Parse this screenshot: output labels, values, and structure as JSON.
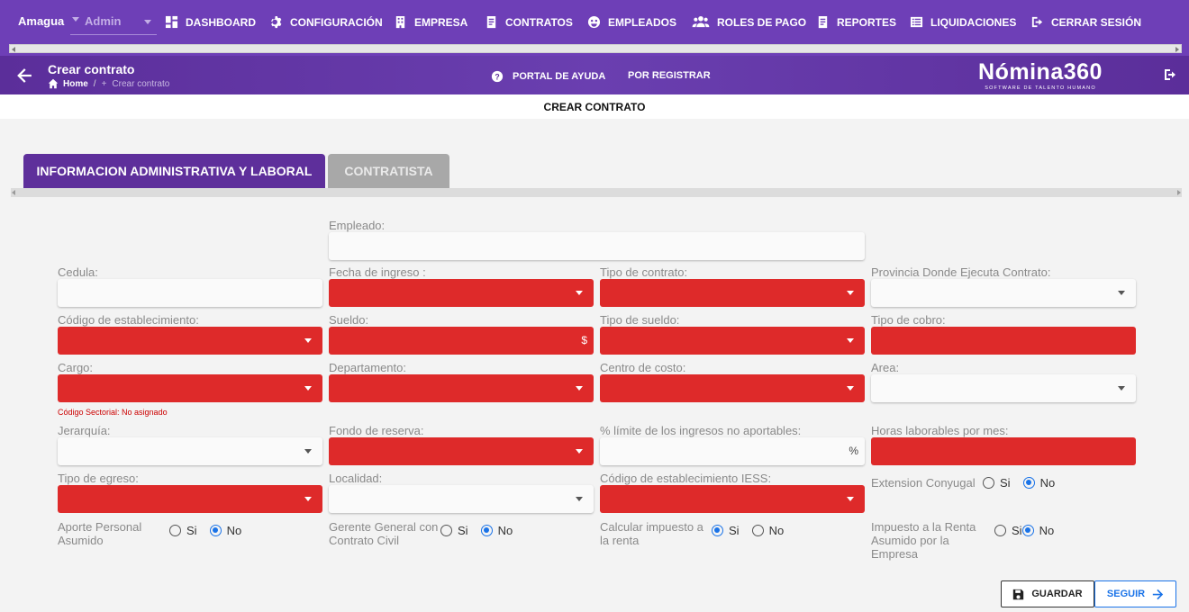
{
  "topnav": {
    "company": "Amagua",
    "role": "Admin",
    "items": [
      {
        "label": "DASHBOARD",
        "icon": "dashboard-icon"
      },
      {
        "label": "CONFIGURACIÓN",
        "icon": "gear-icon"
      },
      {
        "label": "EMPRESA",
        "icon": "building-icon"
      },
      {
        "label": "CONTRATOS",
        "icon": "document-icon"
      },
      {
        "label": "EMPLEADOS",
        "icon": "employees-icon"
      },
      {
        "label": "ROLES DE PAGO",
        "icon": "users-icon"
      },
      {
        "label": "REPORTES",
        "icon": "report-icon"
      },
      {
        "label": "LIQUIDACIONES",
        "icon": "list-icon"
      },
      {
        "label": "CERRAR SESIÓN",
        "icon": "logout-icon"
      }
    ]
  },
  "header": {
    "title": "Crear contrato",
    "breadcrumb": {
      "home": "Home",
      "separator": "/",
      "current": "Crear contrato"
    },
    "help": "PORTAL DE AYUDA",
    "pending": "POR REGISTRAR",
    "logo": {
      "name": "Nómina360",
      "tagline": "SOFTWARE DE TALENTO HUMANO"
    }
  },
  "page_heading": "CREAR CONTRATO",
  "tabs": [
    "INFORMACION ADMINISTRATIVA Y LABORAL",
    "CONTRATISTA"
  ],
  "form": {
    "empleado": "Empleado:",
    "cedula": "Cedula:",
    "fecha_ingreso": "Fecha de ingreso :",
    "tipo_contrato": "Tipo de contrato:",
    "provincia": "Provincia Donde Ejecuta Contrato:",
    "cod_establecimiento": "Código de establecimiento:",
    "sueldo": "Sueldo:",
    "sueldo_suffix": "$",
    "tipo_sueldo": "Tipo de sueldo:",
    "tipo_cobro": "Tipo de cobro:",
    "cargo": "Cargo:",
    "departamento": "Departamento:",
    "centro_costo": "Centro de costo:",
    "area": "Area:",
    "codigo_sectorial": "Código Sectorial: No asignado",
    "jerarquia": "Jerarquía:",
    "fondo_reserva": "Fondo de reserva:",
    "limite_ingresos": "% límite de los ingresos no aportables:",
    "limite_suffix": "%",
    "horas_laborables": "Horas laborables por mes:",
    "tipo_egreso": "Tipo de egreso:",
    "localidad": "Localidad:",
    "cod_iess": "Código de establecimiento IESS:",
    "extension_conyugal": "Extension Conyugal",
    "aporte_personal_1": "Aporte Personal",
    "aporte_personal_2": "Asumido",
    "gerente_1": "Gerente General con",
    "gerente_2": "Contrato Civil",
    "calcular_1": "Calcular impuesto a",
    "calcular_2": "la renta",
    "impuesto_1": "Impuesto a la Renta",
    "impuesto_2": "Asumido por la",
    "impuesto_3": "Empresa",
    "yes": "Si",
    "no": "No"
  },
  "radios": {
    "extension_conyugal": "No",
    "aporte_personal": "No",
    "gerente_general": "No",
    "calcular_impuesto": "Si",
    "impuesto_asumido": "No"
  },
  "buttons": {
    "save": "GUARDAR",
    "next": "SEGUIR"
  },
  "colors": {
    "nav": "#6e3fb7",
    "tab_active": "#5e2f9b",
    "required_field": "#de2a2a",
    "link": "#1a73e8"
  }
}
